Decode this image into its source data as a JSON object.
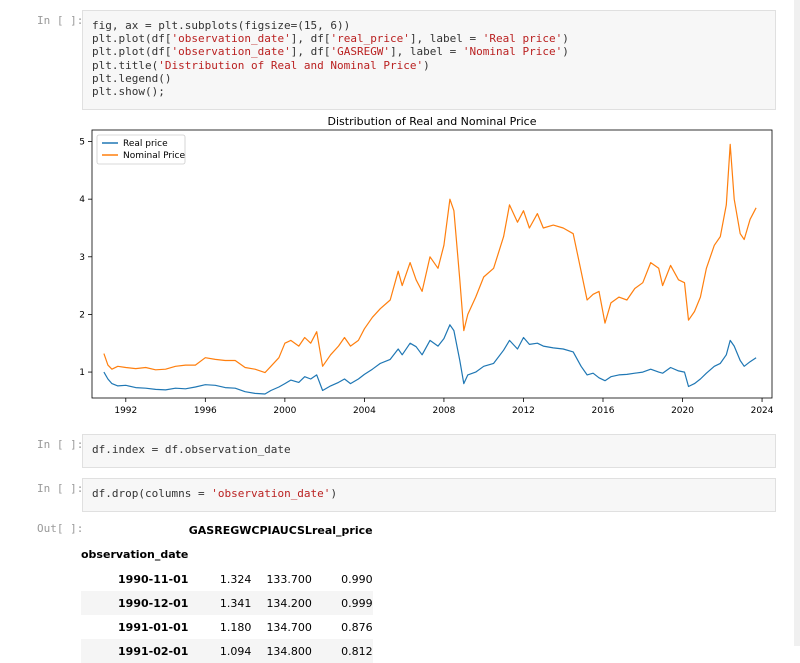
{
  "cells": [
    {
      "prompt": "In [ ]:",
      "code": [
        [
          {
            "t": "fig, ax = plt.subplots(figsize=(15, 6))",
            "c": "p"
          }
        ],
        [
          {
            "t": "plt.plot(df[",
            "c": "p"
          },
          {
            "t": "'observation_date'",
            "c": "s"
          },
          {
            "t": "], df[",
            "c": "p"
          },
          {
            "t": "'real_price'",
            "c": "s"
          },
          {
            "t": "], label = ",
            "c": "p"
          },
          {
            "t": "'Real price'",
            "c": "s"
          },
          {
            "t": ")",
            "c": "p"
          }
        ],
        [
          {
            "t": "plt.plot(df[",
            "c": "p"
          },
          {
            "t": "'observation_date'",
            "c": "s"
          },
          {
            "t": "], df[",
            "c": "p"
          },
          {
            "t": "'GASREGW'",
            "c": "s"
          },
          {
            "t": "], label = ",
            "c": "p"
          },
          {
            "t": "'Nominal Price'",
            "c": "s"
          },
          {
            "t": ")",
            "c": "p"
          }
        ],
        [
          {
            "t": "plt.title(",
            "c": "p"
          },
          {
            "t": "'Distribution of Real and Nominal Price'",
            "c": "s"
          },
          {
            "t": ")",
            "c": "p"
          }
        ],
        [
          {
            "t": "plt.legend()",
            "c": "p"
          }
        ],
        [
          {
            "t": "plt.show();",
            "c": "p"
          }
        ]
      ]
    },
    {
      "prompt": "In [ ]:",
      "code": [
        [
          {
            "t": "df.index = df.observation_date",
            "c": "p"
          }
        ]
      ]
    },
    {
      "prompt": "In [ ]:",
      "code": [
        [
          {
            "t": "df.drop(columns = ",
            "c": "p"
          },
          {
            "t": "'observation_date'",
            "c": "s"
          },
          {
            "t": ")",
            "c": "p"
          }
        ]
      ]
    }
  ],
  "output_prompt": "Out[ ]:",
  "chart_data": {
    "type": "line",
    "title": "Distribution of Real and Nominal Price",
    "xlim": [
      1990.3,
      2024.5
    ],
    "ylim": [
      0.55,
      5.2
    ],
    "xticks": [
      "1992",
      "1996",
      "2000",
      "2004",
      "2008",
      "2012",
      "2016",
      "2020",
      "2024"
    ],
    "yticks": [
      "1",
      "2",
      "3",
      "4",
      "5"
    ],
    "legend_loc": "upper left",
    "grid": false,
    "colors": {
      "real": "#1f77b4",
      "nominal": "#ff7f0e"
    },
    "series": [
      {
        "name": "Real price",
        "x": [
          1990.9,
          1991.1,
          1991.3,
          1991.6,
          1992.0,
          1992.5,
          1993.0,
          1993.5,
          1994.0,
          1994.5,
          1995.0,
          1995.5,
          1996.0,
          1996.5,
          1997.0,
          1997.5,
          1998.0,
          1998.5,
          1999.0,
          1999.3,
          1999.7,
          2000.0,
          2000.3,
          2000.7,
          2001.0,
          2001.3,
          2001.6,
          2001.9,
          2002.3,
          2002.7,
          2003.0,
          2003.3,
          2003.7,
          2004.0,
          2004.4,
          2004.8,
          2005.3,
          2005.7,
          2005.9,
          2006.3,
          2006.6,
          2006.9,
          2007.3,
          2007.7,
          2008.0,
          2008.3,
          2008.5,
          2008.8,
          2009.0,
          2009.2,
          2009.6,
          2010.0,
          2010.5,
          2011.0,
          2011.3,
          2011.7,
          2012.0,
          2012.3,
          2012.7,
          2013.0,
          2013.5,
          2014.0,
          2014.5,
          2014.9,
          2015.2,
          2015.5,
          2015.8,
          2016.1,
          2016.4,
          2016.8,
          2017.2,
          2017.6,
          2018.0,
          2018.4,
          2018.8,
          2019.0,
          2019.4,
          2019.8,
          2020.1,
          2020.3,
          2020.6,
          2020.9,
          2021.2,
          2021.6,
          2021.9,
          2022.2,
          2022.4,
          2022.6,
          2022.9,
          2023.1,
          2023.4,
          2023.7
        ],
        "values": [
          1.0,
          0.88,
          0.8,
          0.76,
          0.77,
          0.73,
          0.72,
          0.7,
          0.69,
          0.72,
          0.71,
          0.74,
          0.78,
          0.77,
          0.73,
          0.72,
          0.66,
          0.63,
          0.62,
          0.68,
          0.74,
          0.8,
          0.86,
          0.82,
          0.92,
          0.88,
          0.95,
          0.68,
          0.76,
          0.82,
          0.88,
          0.8,
          0.88,
          0.96,
          1.05,
          1.15,
          1.22,
          1.4,
          1.3,
          1.5,
          1.44,
          1.3,
          1.55,
          1.45,
          1.58,
          1.82,
          1.72,
          1.2,
          0.8,
          0.95,
          1.0,
          1.1,
          1.15,
          1.38,
          1.55,
          1.4,
          1.6,
          1.48,
          1.5,
          1.45,
          1.42,
          1.4,
          1.35,
          1.1,
          0.95,
          0.98,
          0.9,
          0.85,
          0.92,
          0.95,
          0.96,
          0.98,
          1.0,
          1.05,
          1.0,
          0.98,
          1.08,
          1.02,
          1.0,
          0.75,
          0.8,
          0.88,
          0.98,
          1.1,
          1.15,
          1.3,
          1.55,
          1.45,
          1.2,
          1.1,
          1.18,
          1.25
        ]
      },
      {
        "name": "Nominal Price",
        "x": [
          1990.9,
          1991.1,
          1991.3,
          1991.6,
          1992.0,
          1992.5,
          1993.0,
          1993.5,
          1994.0,
          1994.5,
          1995.0,
          1995.5,
          1996.0,
          1996.5,
          1997.0,
          1997.5,
          1998.0,
          1998.5,
          1999.0,
          1999.3,
          1999.7,
          2000.0,
          2000.3,
          2000.7,
          2001.0,
          2001.3,
          2001.6,
          2001.9,
          2002.3,
          2002.7,
          2003.0,
          2003.3,
          2003.7,
          2004.0,
          2004.4,
          2004.8,
          2005.3,
          2005.7,
          2005.9,
          2006.3,
          2006.6,
          2006.9,
          2007.3,
          2007.7,
          2008.0,
          2008.3,
          2008.5,
          2008.8,
          2009.0,
          2009.2,
          2009.6,
          2010.0,
          2010.5,
          2011.0,
          2011.3,
          2011.7,
          2012.0,
          2012.3,
          2012.7,
          2013.0,
          2013.5,
          2014.0,
          2014.5,
          2014.9,
          2015.2,
          2015.5,
          2015.8,
          2016.1,
          2016.4,
          2016.8,
          2017.2,
          2017.6,
          2018.0,
          2018.4,
          2018.8,
          2019.0,
          2019.4,
          2019.8,
          2020.1,
          2020.3,
          2020.6,
          2020.9,
          2021.2,
          2021.6,
          2021.9,
          2022.2,
          2022.4,
          2022.6,
          2022.9,
          2023.1,
          2023.4,
          2023.7
        ],
        "values": [
          1.32,
          1.12,
          1.05,
          1.1,
          1.08,
          1.06,
          1.08,
          1.04,
          1.05,
          1.1,
          1.12,
          1.12,
          1.25,
          1.22,
          1.2,
          1.2,
          1.08,
          1.05,
          0.99,
          1.1,
          1.25,
          1.5,
          1.55,
          1.45,
          1.6,
          1.5,
          1.7,
          1.1,
          1.3,
          1.45,
          1.6,
          1.45,
          1.55,
          1.75,
          1.95,
          2.1,
          2.25,
          2.75,
          2.5,
          2.9,
          2.6,
          2.4,
          3.0,
          2.8,
          3.2,
          4.0,
          3.8,
          2.6,
          1.72,
          2.0,
          2.3,
          2.65,
          2.8,
          3.35,
          3.9,
          3.6,
          3.8,
          3.5,
          3.75,
          3.5,
          3.55,
          3.5,
          3.4,
          2.75,
          2.25,
          2.35,
          2.4,
          1.85,
          2.2,
          2.3,
          2.25,
          2.45,
          2.55,
          2.9,
          2.8,
          2.5,
          2.85,
          2.6,
          2.55,
          1.9,
          2.05,
          2.3,
          2.8,
          3.2,
          3.35,
          3.9,
          4.95,
          4.0,
          3.4,
          3.3,
          3.65,
          3.85
        ]
      }
    ]
  },
  "table": {
    "columns": [
      "GASREGW",
      "CPIAUCSL",
      "real_price"
    ],
    "index_name": "observation_date",
    "rows": [
      {
        "index": "1990-11-01",
        "cells": [
          "1.324",
          "133.700",
          "0.990"
        ]
      },
      {
        "index": "1990-12-01",
        "cells": [
          "1.341",
          "134.200",
          "0.999"
        ]
      },
      {
        "index": "1991-01-01",
        "cells": [
          "1.180",
          "134.700",
          "0.876"
        ]
      },
      {
        "index": "1991-02-01",
        "cells": [
          "1.094",
          "134.800",
          "0.812"
        ]
      }
    ]
  }
}
